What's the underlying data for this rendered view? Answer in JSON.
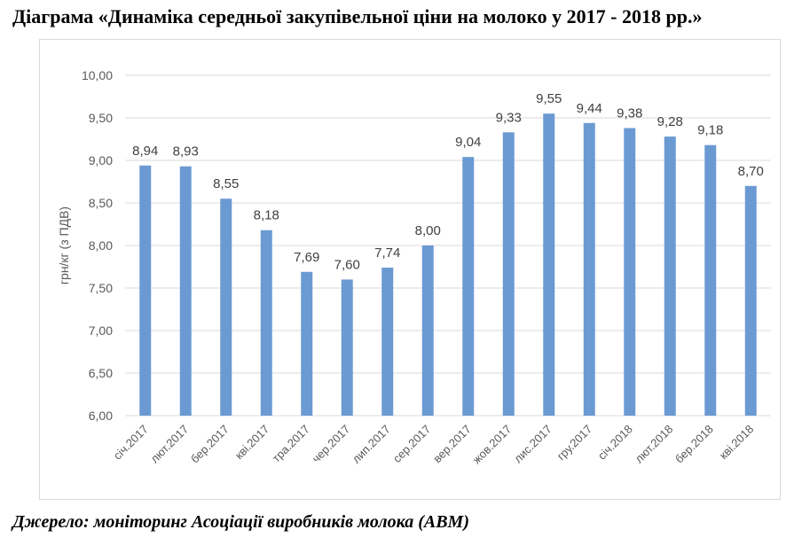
{
  "title": "Діаграма «Динаміка середньої закупівельної ціни на молоко у 2017 - 2018 рр.»",
  "source": "Джерело: моніторинг Асоціації виробників молока (АВМ)",
  "colors": {
    "bar": "#6b9ad3",
    "grid": "#d9d9d9",
    "axis_text": "#595959",
    "label_text": "#404040"
  },
  "chart_data": {
    "type": "bar",
    "categories": [
      "січ.2017",
      "лют.2017",
      "бер.2017",
      "кві.2017",
      "тра.2017",
      "чер.2017",
      "лип.2017",
      "сер.2017",
      "вер.2017",
      "жов.2017",
      "лис.2017",
      "гру.2017",
      "січ.2018",
      "лют.2018",
      "бер.2018",
      "кві.2018"
    ],
    "values": [
      8.94,
      8.93,
      8.55,
      8.18,
      7.69,
      7.6,
      7.74,
      8.0,
      9.04,
      9.33,
      9.55,
      9.44,
      9.38,
      9.28,
      9.18,
      8.7
    ],
    "value_labels": [
      "8,94",
      "8,93",
      "8,55",
      "8,18",
      "7,69",
      "7,60",
      "7,74",
      "8,00",
      "9,04",
      "9,33",
      "9,55",
      "9,44",
      "9,38",
      "9,28",
      "9,18",
      "8,70"
    ],
    "ylabel": "грн/кг (з ПДВ)",
    "ylim": [
      6.0,
      10.0
    ],
    "yticks": [
      6.0,
      6.5,
      7.0,
      7.5,
      8.0,
      8.5,
      9.0,
      9.5,
      10.0
    ],
    "ytick_labels": [
      "6,00",
      "6,50",
      "7,00",
      "7,50",
      "8,00",
      "8,50",
      "9,00",
      "9,50",
      "10,00"
    ],
    "grid": true,
    "legend": "none"
  }
}
